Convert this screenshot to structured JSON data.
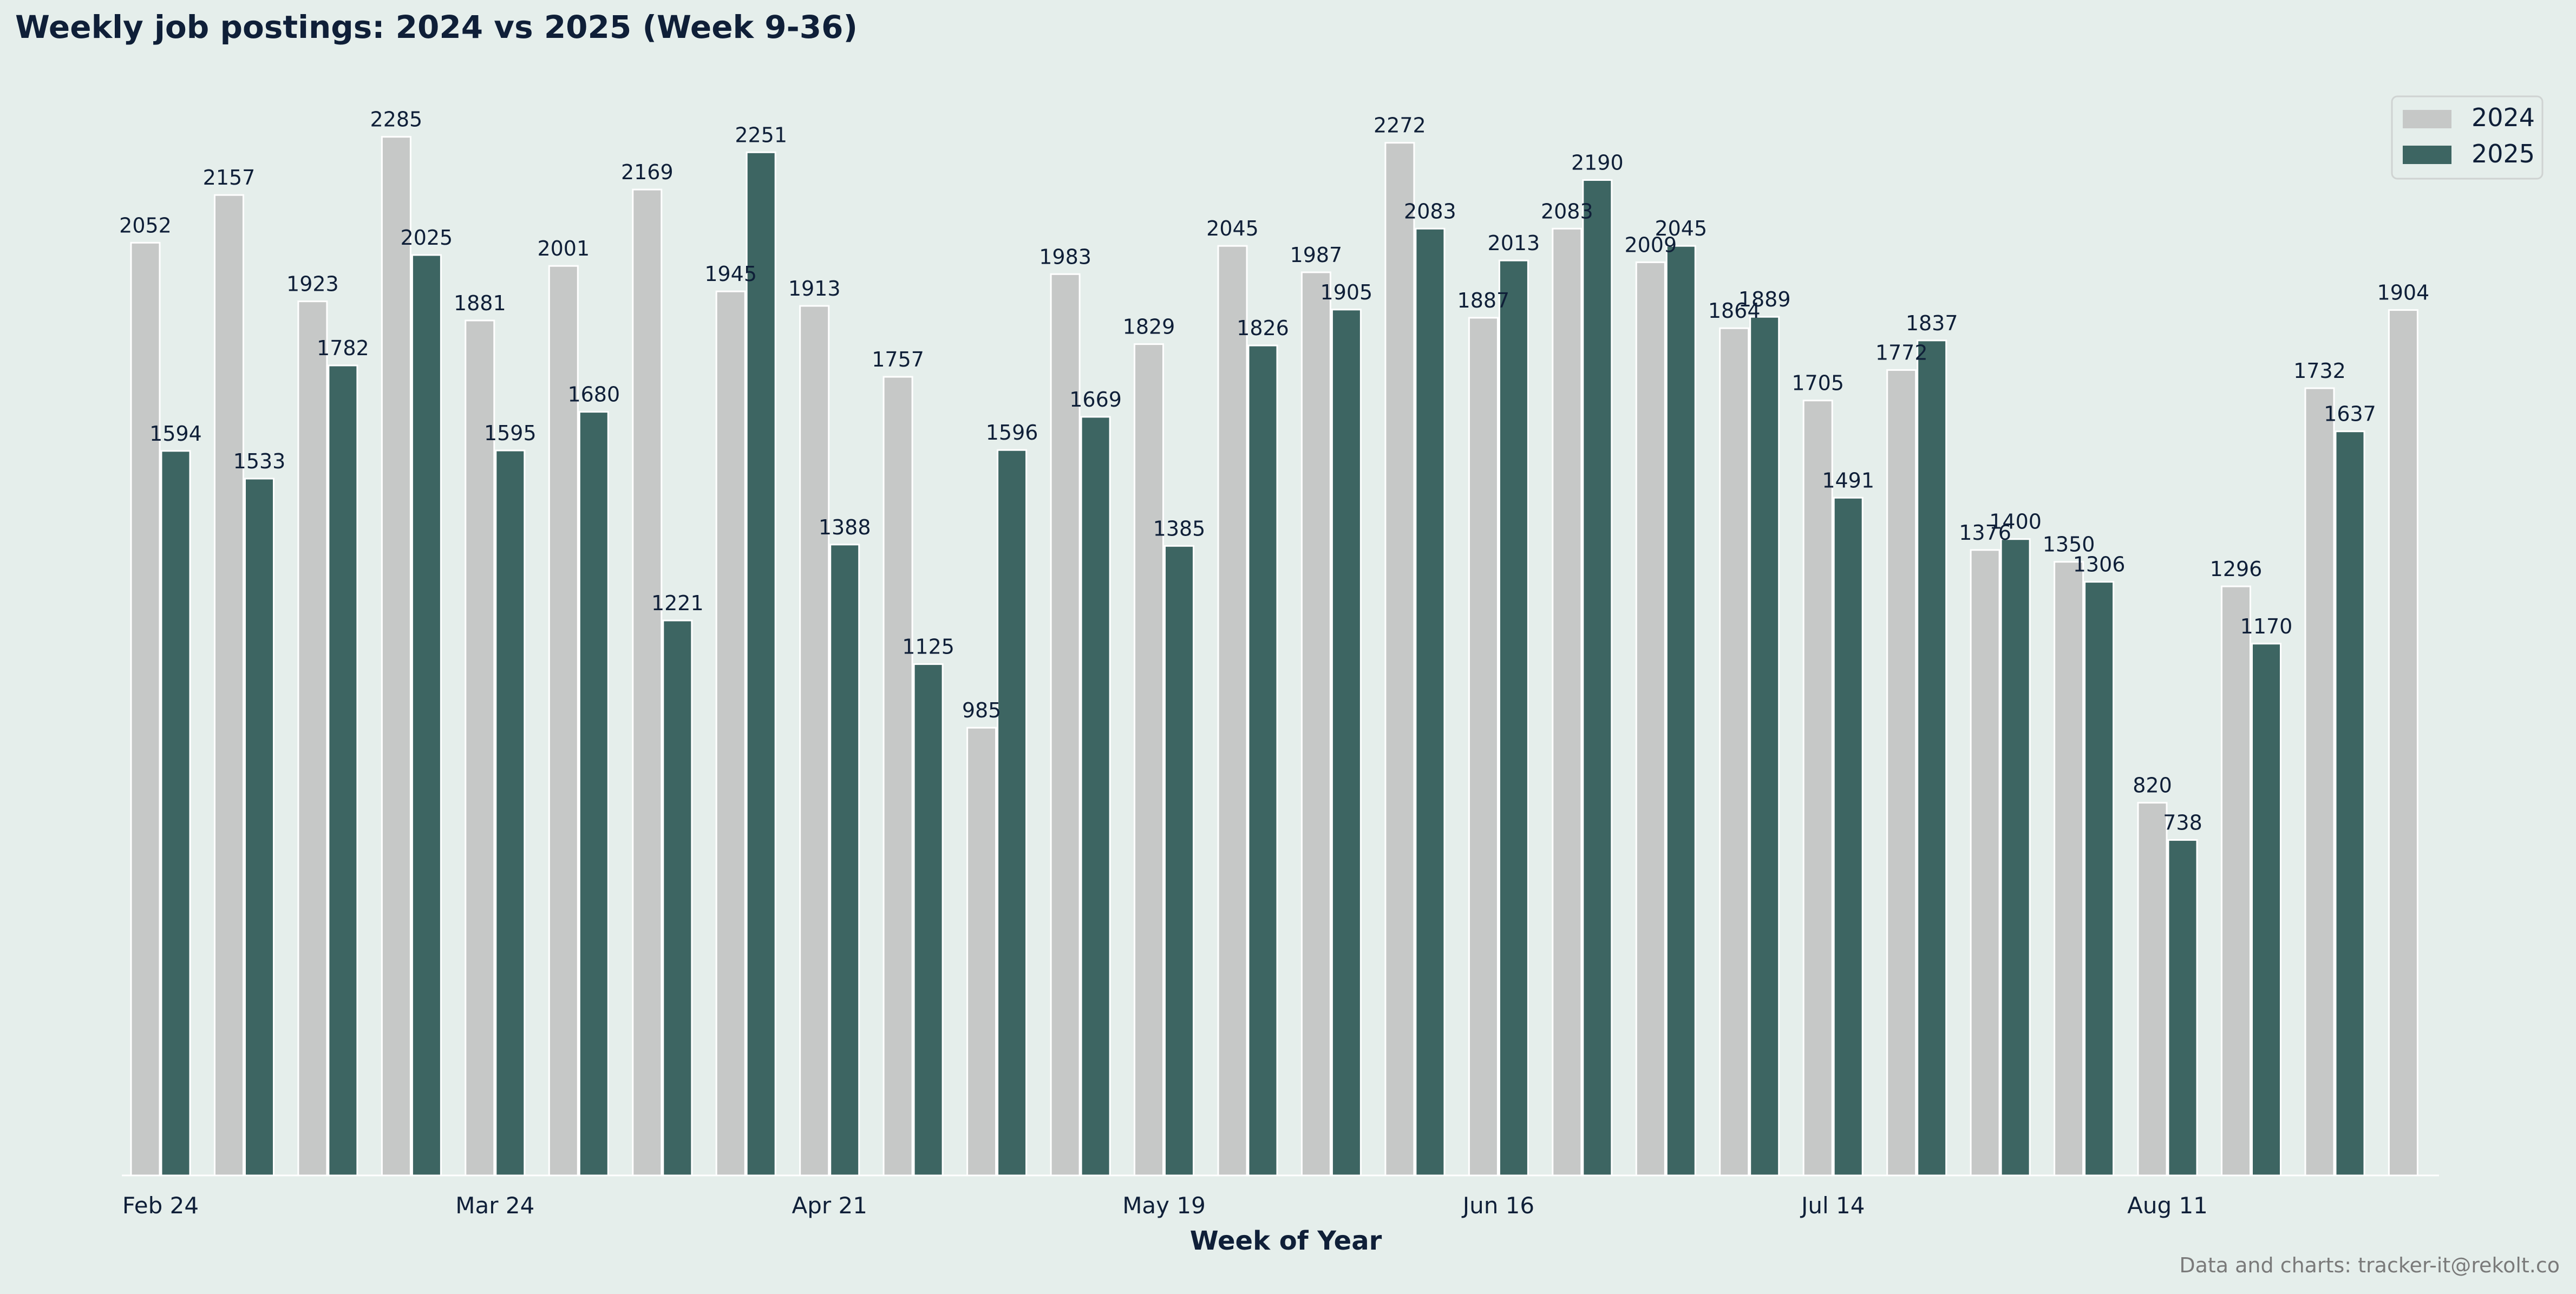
{
  "chart_data": {
    "type": "bar",
    "title": "Weekly job postings: 2024 vs 2025 (Week 9-36)",
    "xlabel": "Week of Year",
    "ylabel": "",
    "ylim": [
      0,
      2400
    ],
    "grid": false,
    "legend_position": "top-right",
    "credit": "Data and charts: tracker-it@rekolt.co",
    "x_tick_labels": [
      {
        "index": 0,
        "label": "Feb 24"
      },
      {
        "index": 4,
        "label": "Mar 24"
      },
      {
        "index": 8,
        "label": "Apr 21"
      },
      {
        "index": 12,
        "label": "May 19"
      },
      {
        "index": 16,
        "label": "Jun 16"
      },
      {
        "index": 20,
        "label": "Jul 14"
      },
      {
        "index": 24,
        "label": "Aug 11"
      }
    ],
    "series": [
      {
        "name": "2024",
        "color": "#c6c8c7",
        "values": [
          2052,
          2157,
          1923,
          2285,
          1881,
          2001,
          2169,
          1945,
          1913,
          1757,
          985,
          1983,
          1829,
          2045,
          1987,
          2272,
          1887,
          2083,
          2009,
          1864,
          1705,
          1772,
          1376,
          1350,
          820,
          1296,
          1732,
          1904
        ]
      },
      {
        "name": "2025",
        "color": "#3d6562",
        "values": [
          1594,
          1533,
          1782,
          2025,
          1595,
          1680,
          1221,
          2251,
          1388,
          1125,
          1596,
          1669,
          1385,
          1826,
          1905,
          2083,
          2013,
          2190,
          2045,
          1889,
          1491,
          1837,
          1400,
          1306,
          738,
          1170,
          1637,
          null
        ]
      }
    ]
  },
  "colors": {
    "background": "#e5eeeb",
    "text": "#0f1f38",
    "credit": "#7a7a7a"
  }
}
